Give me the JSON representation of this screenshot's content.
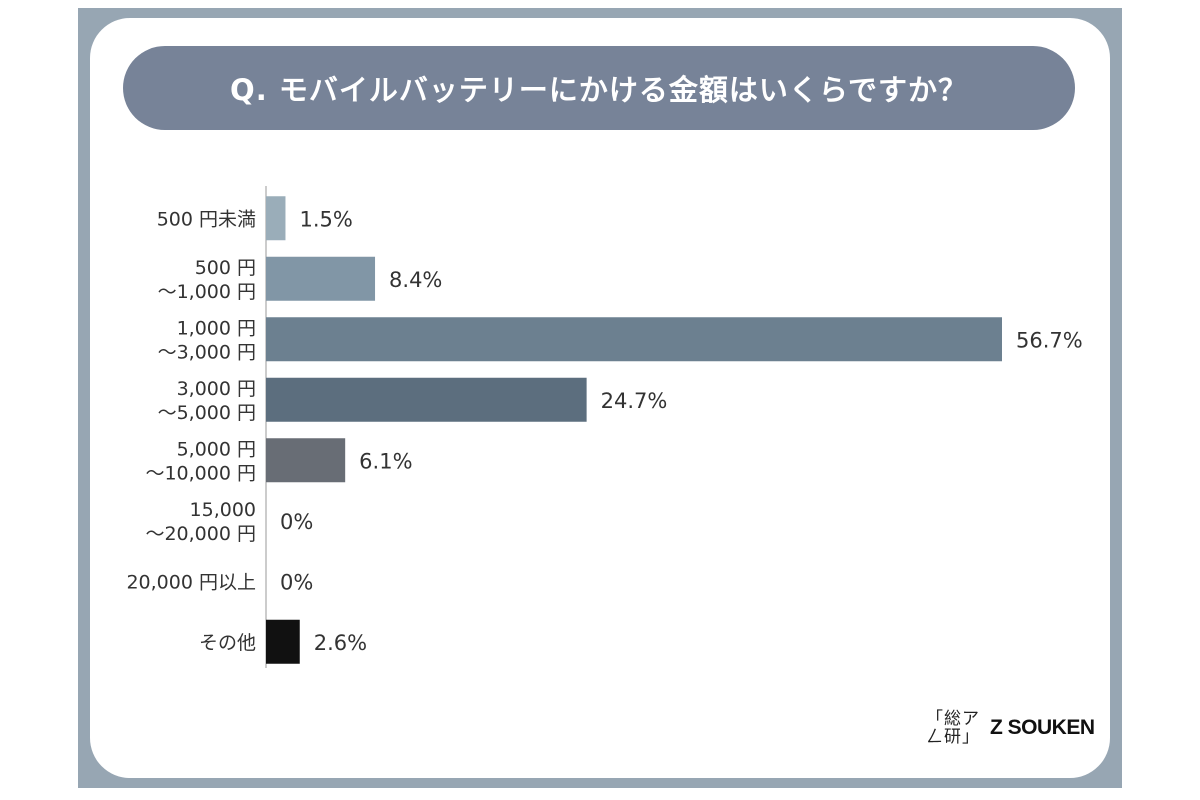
{
  "header": {
    "title": "Q. モバイルバッテリーにかける金額はいくらですか？"
  },
  "brand": {
    "mark_line1": "「総ア",
    "mark_line2": "ㄥ研」",
    "name": "Z SOUKEN"
  },
  "chart_data": {
    "type": "bar",
    "orientation": "horizontal",
    "title": "Q. モバイルバッテリーにかける金額はいくらですか？",
    "categories": [
      [
        "500 円未満"
      ],
      [
        "500 円",
        "～1,000 円"
      ],
      [
        "1,000 円",
        "～3,000 円"
      ],
      [
        "3,000 円",
        "～5,000 円"
      ],
      [
        "5,000 円",
        "～10,000 円"
      ],
      [
        "15,000",
        "～20,000 円"
      ],
      [
        "20,000 円以上"
      ],
      [
        "その他"
      ]
    ],
    "values": [
      1.5,
      8.4,
      56.7,
      24.7,
      6.1,
      0,
      0,
      2.6
    ],
    "value_labels": [
      "1.5%",
      "8.4%",
      "56.7%",
      "24.7%",
      "6.1%",
      "0%",
      "0%",
      "2.6%"
    ],
    "colors": [
      "#9aadb9",
      "#8196a6",
      "#6c8090",
      "#5c6e7e",
      "#686d75",
      "#686d75",
      "#686d75",
      "#111111"
    ],
    "xlim": [
      0,
      56.7
    ],
    "grid": false,
    "xlabel": "",
    "ylabel": ""
  }
}
